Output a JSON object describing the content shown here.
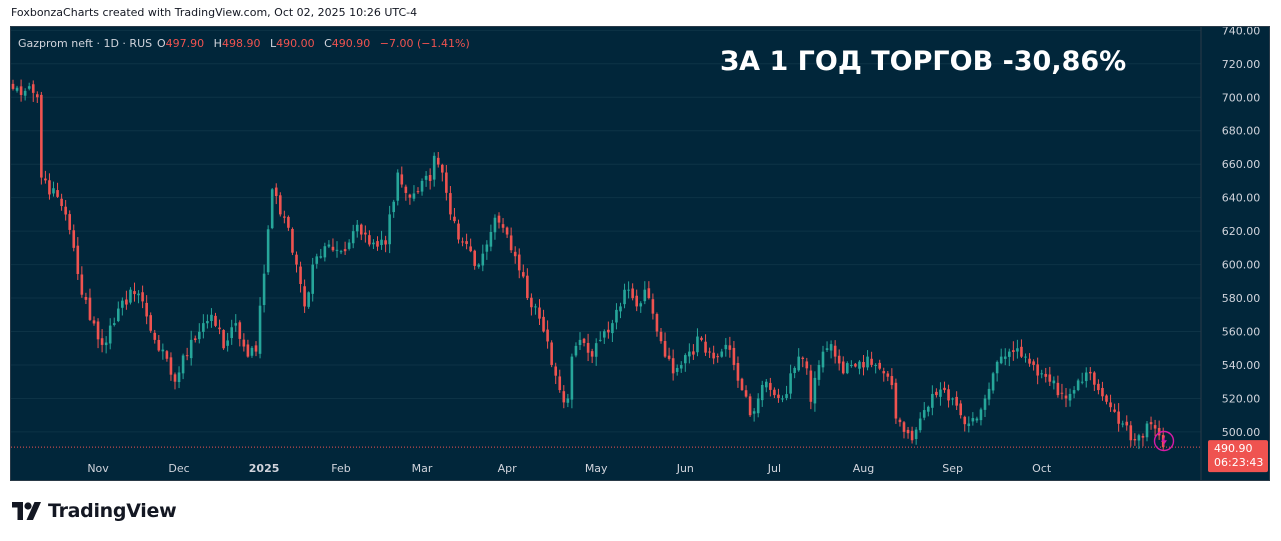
{
  "attribution": "FoxbonzaCharts created with TradingView.com, Oct 02, 2025 10:26 UTC-4",
  "legend": {
    "symbol": "Gazprom neft · 1D · RUS",
    "o_label": "O",
    "o_value": "497.90",
    "h_label": "H",
    "h_value": "498.90",
    "l_label": "L",
    "l_value": "490.00",
    "c_label": "C",
    "c_value": "490.90",
    "change": "−7.00 (−1.41%)"
  },
  "headline": "ЗА 1 ГОД ТОРГОВ -30,86%",
  "price_tag": {
    "price": "490.90",
    "countdown": "06:23:43"
  },
  "brand": {
    "name": "TradingView"
  },
  "colors": {
    "up": "#26a69a",
    "down": "#ef5350",
    "background": "#01263a",
    "text": "#d1d4dc"
  },
  "icons": {
    "alert": "lightning-icon",
    "logo": "tradingview-logo-icon"
  },
  "chart_data": {
    "type": "candlestick",
    "ylim": [
      485,
      742
    ],
    "y_ticks": [
      "740.00",
      "720.00",
      "700.00",
      "680.00",
      "660.00",
      "640.00",
      "620.00",
      "600.00",
      "580.00",
      "560.00",
      "540.00",
      "520.00",
      "500.00"
    ],
    "x_labels": [
      "Nov",
      "Dec",
      "2025",
      "Feb",
      "Mar",
      "Apr",
      "May",
      "Jun",
      "Jul",
      "Aug",
      "Sep",
      "Oct"
    ],
    "anchors": [
      {
        "i": 0,
        "v": 705
      },
      {
        "i": 6,
        "v": 700
      },
      {
        "i": 7,
        "v": 652
      },
      {
        "i": 12,
        "v": 635
      },
      {
        "i": 15,
        "v": 610
      },
      {
        "i": 17,
        "v": 582
      },
      {
        "i": 22,
        "v": 552
      },
      {
        "i": 25,
        "v": 565
      },
      {
        "i": 29,
        "v": 585
      },
      {
        "i": 32,
        "v": 578
      },
      {
        "i": 35,
        "v": 555
      },
      {
        "i": 40,
        "v": 530
      },
      {
        "i": 44,
        "v": 555
      },
      {
        "i": 47,
        "v": 565
      },
      {
        "i": 49,
        "v": 570
      },
      {
        "i": 52,
        "v": 550
      },
      {
        "i": 55,
        "v": 565
      },
      {
        "i": 58,
        "v": 545
      },
      {
        "i": 60,
        "v": 548
      },
      {
        "i": 64,
        "v": 645
      },
      {
        "i": 66,
        "v": 630
      },
      {
        "i": 68,
        "v": 622
      },
      {
        "i": 70,
        "v": 600
      },
      {
        "i": 72,
        "v": 575
      },
      {
        "i": 74,
        "v": 600
      },
      {
        "i": 78,
        "v": 612
      },
      {
        "i": 82,
        "v": 608
      },
      {
        "i": 84,
        "v": 620
      },
      {
        "i": 87,
        "v": 618
      },
      {
        "i": 92,
        "v": 612
      },
      {
        "i": 93,
        "v": 630
      },
      {
        "i": 95,
        "v": 655
      },
      {
        "i": 98,
        "v": 640
      },
      {
        "i": 101,
        "v": 650
      },
      {
        "i": 103,
        "v": 650
      },
      {
        "i": 104,
        "v": 665
      },
      {
        "i": 106,
        "v": 655
      },
      {
        "i": 108,
        "v": 630
      },
      {
        "i": 110,
        "v": 615
      },
      {
        "i": 113,
        "v": 608
      },
      {
        "i": 115,
        "v": 600
      },
      {
        "i": 117,
        "v": 612
      },
      {
        "i": 119,
        "v": 628
      },
      {
        "i": 121,
        "v": 622
      },
      {
        "i": 124,
        "v": 605
      },
      {
        "i": 127,
        "v": 580
      },
      {
        "i": 129,
        "v": 575
      },
      {
        "i": 131,
        "v": 560
      },
      {
        "i": 133,
        "v": 540
      },
      {
        "i": 135,
        "v": 525
      },
      {
        "i": 137,
        "v": 520
      },
      {
        "i": 138,
        "v": 545
      },
      {
        "i": 140,
        "v": 555
      },
      {
        "i": 143,
        "v": 545
      },
      {
        "i": 145,
        "v": 555
      },
      {
        "i": 148,
        "v": 565
      },
      {
        "i": 150,
        "v": 575
      },
      {
        "i": 152,
        "v": 585
      },
      {
        "i": 154,
        "v": 575
      },
      {
        "i": 156,
        "v": 585
      },
      {
        "i": 157,
        "v": 580
      },
      {
        "i": 159,
        "v": 560
      },
      {
        "i": 161,
        "v": 545
      },
      {
        "i": 163,
        "v": 535
      },
      {
        "i": 165,
        "v": 540
      },
      {
        "i": 167,
        "v": 548
      },
      {
        "i": 170,
        "v": 555
      },
      {
        "i": 172,
        "v": 548
      },
      {
        "i": 174,
        "v": 545
      },
      {
        "i": 176,
        "v": 552
      },
      {
        "i": 178,
        "v": 540
      },
      {
        "i": 180,
        "v": 525
      },
      {
        "i": 182,
        "v": 510
      },
      {
        "i": 184,
        "v": 520
      },
      {
        "i": 186,
        "v": 530
      },
      {
        "i": 188,
        "v": 522
      },
      {
        "i": 190,
        "v": 520
      },
      {
        "i": 192,
        "v": 535
      },
      {
        "i": 194,
        "v": 545
      },
      {
        "i": 196,
        "v": 538
      },
      {
        "i": 197,
        "v": 518
      },
      {
        "i": 199,
        "v": 540
      },
      {
        "i": 201,
        "v": 550
      },
      {
        "i": 203,
        "v": 545
      },
      {
        "i": 205,
        "v": 535
      },
      {
        "i": 207,
        "v": 540
      },
      {
        "i": 209,
        "v": 542
      },
      {
        "i": 211,
        "v": 545
      },
      {
        "i": 213,
        "v": 540
      },
      {
        "i": 215,
        "v": 535
      },
      {
        "i": 217,
        "v": 528
      },
      {
        "i": 218,
        "v": 508
      },
      {
        "i": 220,
        "v": 500
      },
      {
        "i": 222,
        "v": 495
      },
      {
        "i": 224,
        "v": 508
      },
      {
        "i": 226,
        "v": 515
      },
      {
        "i": 228,
        "v": 522
      },
      {
        "i": 230,
        "v": 525
      },
      {
        "i": 232,
        "v": 520
      },
      {
        "i": 234,
        "v": 510
      },
      {
        "i": 236,
        "v": 505
      },
      {
        "i": 238,
        "v": 508
      },
      {
        "i": 240,
        "v": 520
      },
      {
        "i": 242,
        "v": 535
      },
      {
        "i": 244,
        "v": 545
      },
      {
        "i": 246,
        "v": 548
      },
      {
        "i": 248,
        "v": 550
      },
      {
        "i": 250,
        "v": 545
      },
      {
        "i": 252,
        "v": 540
      },
      {
        "i": 254,
        "v": 535
      },
      {
        "i": 256,
        "v": 530
      },
      {
        "i": 258,
        "v": 522
      },
      {
        "i": 260,
        "v": 520
      },
      {
        "i": 262,
        "v": 525
      },
      {
        "i": 264,
        "v": 530
      },
      {
        "i": 266,
        "v": 535
      },
      {
        "i": 268,
        "v": 525
      },
      {
        "i": 270,
        "v": 518
      },
      {
        "i": 272,
        "v": 512
      },
      {
        "i": 274,
        "v": 505
      },
      {
        "i": 276,
        "v": 495
      },
      {
        "i": 278,
        "v": 498
      },
      {
        "i": 280,
        "v": 505
      },
      {
        "i": 282,
        "v": 502
      },
      {
        "i": 283,
        "v": 497.9
      },
      {
        "i": 284,
        "v": 490.9
      }
    ]
  }
}
